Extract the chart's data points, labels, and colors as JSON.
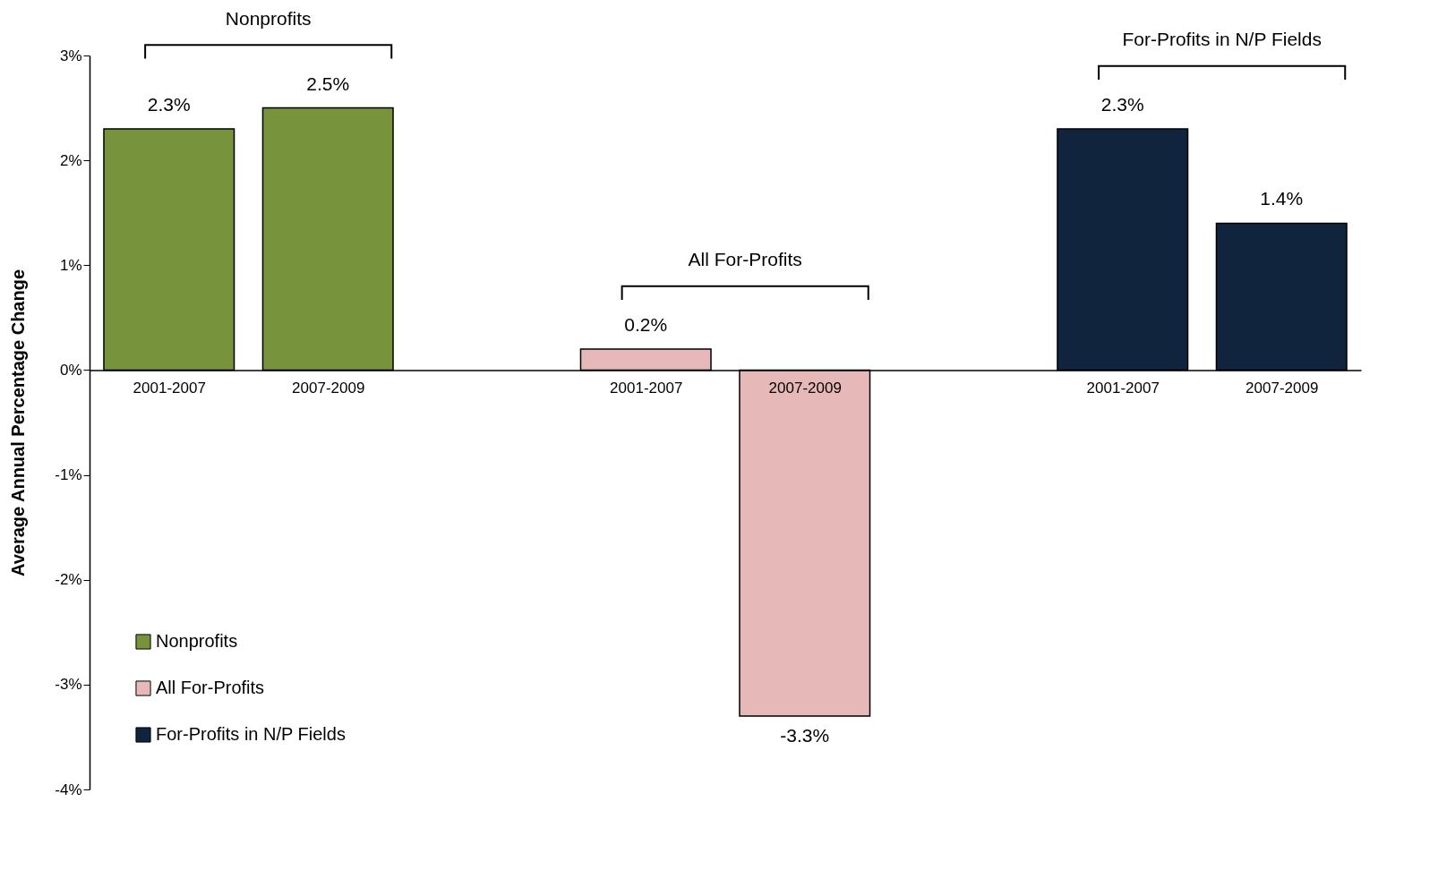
{
  "chart_data": {
    "type": "bar",
    "ylabel": "Average Annual Percentage Change",
    "categories": [
      "2001-2007",
      "2007-2009",
      null,
      "2001-2007",
      "2007-2009",
      null,
      "2001-2007",
      "2007-2009"
    ],
    "series": [
      {
        "name": "Nonprofits",
        "color": "#77933c",
        "values": [
          2.3,
          2.5,
          null,
          null,
          null,
          null,
          null,
          null
        ],
        "value_labels": [
          "2.3%",
          "2.5%",
          null,
          null,
          null,
          null,
          null,
          null
        ]
      },
      {
        "name": "All For-Profits",
        "color": "#e6b9b8",
        "values": [
          null,
          null,
          null,
          0.2,
          -3.3,
          null,
          null,
          null
        ],
        "value_labels": [
          null,
          null,
          null,
          "0.2%",
          "-3.3%",
          null,
          null,
          null
        ]
      },
      {
        "name": "For-Profits in N/P Fields",
        "color": "#10243e",
        "values": [
          null,
          null,
          null,
          null,
          null,
          null,
          2.3,
          1.4
        ],
        "value_labels": [
          null,
          null,
          null,
          null,
          null,
          null,
          "2.3%",
          "1.4%"
        ]
      }
    ],
    "annotations": [
      "Nonprofits",
      "All For-Profits",
      "For-Profits in N/P Fields"
    ],
    "ylim": [
      -4,
      3
    ],
    "yticks": [
      {
        "value": -4,
        "label": "-4%"
      },
      {
        "value": -3,
        "label": "-3%"
      },
      {
        "value": -2,
        "label": "-2%"
      },
      {
        "value": -1,
        "label": "-1%"
      },
      {
        "value": 0,
        "label": "0%"
      },
      {
        "value": 1,
        "label": "1%"
      },
      {
        "value": 2,
        "label": "2%"
      },
      {
        "value": 3,
        "label": "3%"
      }
    ],
    "grid": false,
    "legend": "bottom left"
  }
}
